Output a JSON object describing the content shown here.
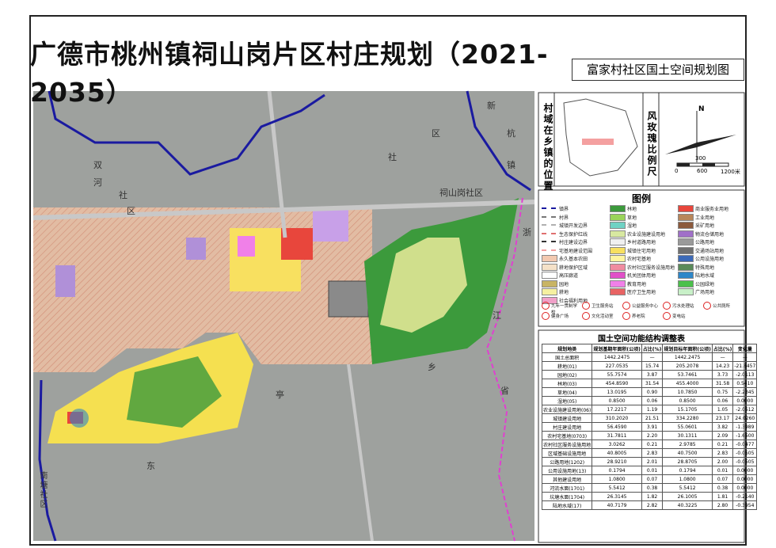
{
  "header": {
    "title": "广德市桃州镇祠山岗片区村庄规划（2021-2035）",
    "subtitle": "富家村社区国土空间规划图"
  },
  "map": {
    "labels": [
      "双",
      "河",
      "社",
      "区",
      "新",
      "杭",
      "镇",
      "区",
      "社",
      "祠山岗社区",
      "浙",
      "江",
      "省",
      "乡",
      "亭",
      "东",
      "南塘社区"
    ]
  },
  "location_panel": {
    "title": "村域在乡镇的位置",
    "wind_rose_title": "风玫瑰比例尺",
    "north": "N",
    "scale_labels": [
      "300",
      "0",
      "600",
      "1200米"
    ]
  },
  "legend": {
    "title": "图例",
    "items": [
      {
        "label": "镇界",
        "color": "#1a1aa0",
        "kind": "line"
      },
      {
        "label": "林地",
        "color": "#3c9a3c"
      },
      {
        "label": "商业服务业用地",
        "color": "#e8463c"
      },
      {
        "label": "村界",
        "color": "#777777",
        "kind": "line"
      },
      {
        "label": "草地",
        "color": "#9ad45a"
      },
      {
        "label": "工业用地",
        "color": "#b8865a"
      },
      {
        "label": "城镇开发边界",
        "color": "#b0b0b0",
        "kind": "line"
      },
      {
        "label": "湿地",
        "color": "#6fd2c4"
      },
      {
        "label": "采矿用地",
        "color": "#8c5a3c"
      },
      {
        "label": "生态保护红线",
        "color": "#e07070",
        "kind": "line"
      },
      {
        "label": "农业设施建设用地",
        "color": "#d8e8a0"
      },
      {
        "label": "物流仓储用地",
        "color": "#a070c8"
      },
      {
        "label": "村庄建设边界",
        "color": "#333333",
        "kind": "line"
      },
      {
        "label": "乡村道路用地",
        "color": "#f0f0f0"
      },
      {
        "label": "公路用地",
        "color": "#9a9a9a"
      },
      {
        "label": "宅基地建设范围",
        "color": "#f4a0a0",
        "kind": "line"
      },
      {
        "label": "城镇住宅用地",
        "color": "#f8e060"
      },
      {
        "label": "交通场站用地",
        "color": "#707070"
      },
      {
        "label": "永久基本农田",
        "color": "#f3c9b0"
      },
      {
        "label": "农村宅基地",
        "color": "#fff5a0"
      },
      {
        "label": "公用设施用地",
        "color": "#3c6ab8"
      },
      {
        "label": "耕地保护区域",
        "color": "#f5e1c8"
      },
      {
        "label": "农村社区服务设施用地",
        "color": "#f08ca0"
      },
      {
        "label": "特殊用地",
        "color": "#5a8a5a"
      },
      {
        "label": "高压廊道",
        "color": "#ffffff"
      },
      {
        "label": "机关团体用地",
        "color": "#e050c8"
      },
      {
        "label": "陆地水域",
        "color": "#2e86c8"
      },
      {
        "label": "园地",
        "color": "#c8b464"
      },
      {
        "label": "教育用地",
        "color": "#f080e8"
      },
      {
        "label": "公园绿地",
        "color": "#4cc04c"
      },
      {
        "label": "耕地",
        "color": "#f5f0a0"
      },
      {
        "label": "医疗卫生用地",
        "color": "#e86464"
      },
      {
        "label": "广场用地",
        "color": "#c8f0c8"
      },
      {
        "label": "社会福利用地",
        "color": "#f0a0c8"
      }
    ],
    "facilities": [
      "九年一贯制学校",
      "卫生服务站",
      "公益服务中心",
      "污水处理站",
      "公共厕所",
      "健身广场",
      "文化活动室",
      "养老院",
      "变电站"
    ]
  },
  "table": {
    "title": "国土空间功能结构调整表",
    "headers": [
      "规划地类",
      "规划基期年面积(公顷)",
      "占比(%)",
      "规划目标年面积(公顷)",
      "占比(%)",
      "变化量"
    ],
    "rows": [
      [
        "国土总面积",
        "1442.2475",
        "—",
        "1442.2475",
        "—",
        "—"
      ],
      [
        "耕地(01)",
        "227.0535",
        "15.74",
        "205.2078",
        "14.23",
        "-21.8457"
      ],
      [
        "园地(02)",
        "55.7574",
        "3.87",
        "53.7461",
        "3.73",
        "-2.0113"
      ],
      [
        "林地(03)",
        "454.8590",
        "31.54",
        "455.4000",
        "31.58",
        "0.5410"
      ],
      [
        "草地(04)",
        "13.0195",
        "0.90",
        "10.7850",
        "0.75",
        "-2.2345"
      ],
      [
        "湿地(05)",
        "0.8500",
        "0.06",
        "0.8500",
        "0.06",
        "0.0000"
      ],
      [
        "农业设施建设用地(06)",
        "17.2217",
        "1.19",
        "15.1705",
        "1.05",
        "-2.0512"
      ],
      [
        "城镇建设用地",
        "310.2020",
        "21.51",
        "334.2280",
        "23.17",
        "24.0260"
      ],
      [
        "村庄建设用地",
        "56.4590",
        "3.91",
        "55.0601",
        "3.82",
        "-1.3989"
      ],
      [
        "农村宅基地(0703)",
        "31.7811",
        "2.20",
        "30.1311",
        "2.09",
        "-1.6500"
      ],
      [
        "农村社区服务设施用地",
        "3.0262",
        "0.21",
        "2.9785",
        "0.21",
        "-0.0477"
      ],
      [
        "区域基础设施用地",
        "40.8005",
        "2.83",
        "40.7500",
        "2.83",
        "-0.0505"
      ],
      [
        "公路用地(1202)",
        "28.9210",
        "2.01",
        "28.8705",
        "2.00",
        "-0.0505"
      ],
      [
        "公用设施用地(13)",
        "0.1794",
        "0.01",
        "0.1794",
        "0.01",
        "0.0000"
      ],
      [
        "其他建设用地",
        "1.0800",
        "0.07",
        "1.0800",
        "0.07",
        "0.0000"
      ],
      [
        "河流水面(1701)",
        "5.5412",
        "0.38",
        "5.5412",
        "0.38",
        "0.0000"
      ],
      [
        "坑塘水面(1704)",
        "26.3145",
        "1.82",
        "26.1005",
        "1.81",
        "-0.2140"
      ],
      [
        "陆地水域(17)",
        "40.7179",
        "2.82",
        "40.3225",
        "2.80",
        "-0.3954"
      ]
    ]
  }
}
